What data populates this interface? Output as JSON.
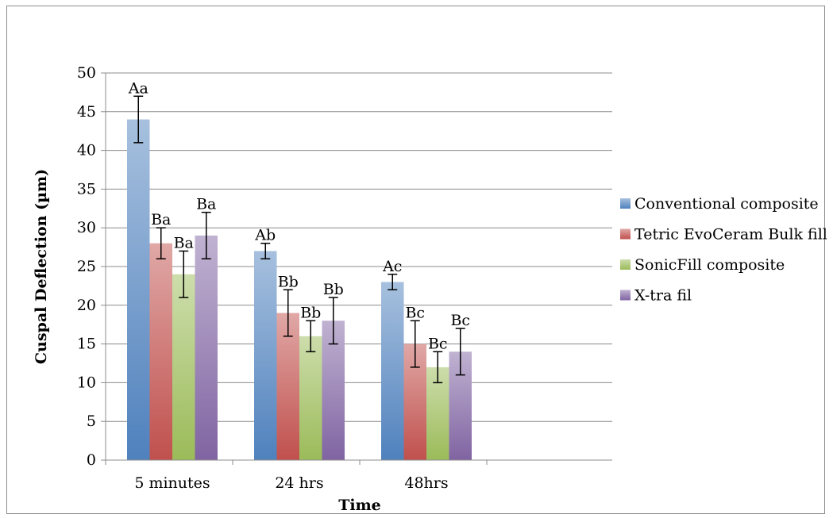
{
  "chart_data": {
    "type": "bar",
    "title": "",
    "xlabel": "Time",
    "ylabel": "Cuspal Deflection (µm)",
    "ylim": [
      0,
      50
    ],
    "y_ticks": [
      "0",
      "5",
      "10",
      "15",
      "20",
      "25",
      "30",
      "35",
      "40",
      "45",
      "50"
    ],
    "grid": true,
    "legend_position": "right",
    "categories": [
      "5 minutes",
      "24 hrs",
      "48hrs"
    ],
    "series": [
      {
        "name": "Conventional composite",
        "color": "#4f81bd",
        "values": [
          44,
          27,
          23
        ],
        "errors": [
          3,
          1,
          1
        ],
        "labels": [
          "Aa",
          "Ab",
          "Ac"
        ]
      },
      {
        "name": "Tetric EvoCeram Bulk fill",
        "color": "#c0504d",
        "values": [
          28,
          19,
          15
        ],
        "errors": [
          2,
          3,
          3
        ],
        "labels": [
          "Ba",
          "Bb",
          "Bc"
        ]
      },
      {
        "name": "SonicFill composite",
        "color": "#9bbb59",
        "values": [
          24,
          16,
          12
        ],
        "errors": [
          3,
          2,
          2
        ],
        "labels": [
          "Ba",
          "Bb",
          "Bc"
        ]
      },
      {
        "name": "X-tra fil",
        "color": "#8064a2",
        "values": [
          29,
          18,
          14
        ],
        "errors": [
          3,
          3,
          3
        ],
        "labels": [
          "Ba",
          "Bb",
          "Bc"
        ]
      }
    ]
  }
}
